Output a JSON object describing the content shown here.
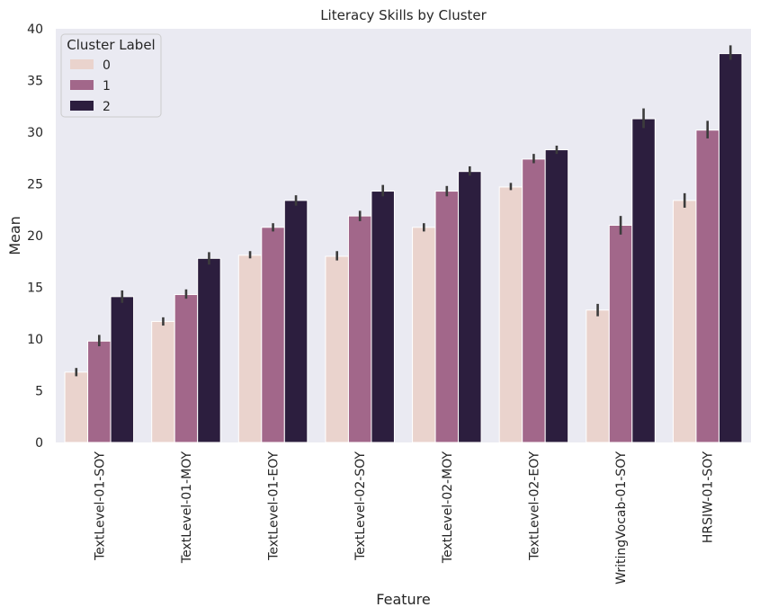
{
  "chart_data": {
    "type": "bar",
    "title": "Literacy Skills by Cluster",
    "xlabel": "Feature",
    "ylabel": "Mean",
    "ylim": [
      0,
      40
    ],
    "yticks": [
      0,
      5,
      10,
      15,
      20,
      25,
      30,
      35,
      40
    ],
    "grid": false,
    "legend": {
      "title": "Cluster Label",
      "placement": "top-left"
    },
    "categories": [
      "TextLevel-01-SOY",
      "TextLevel-01-MOY",
      "TextLevel-01-EOY",
      "TextLevel-02-SOY",
      "TextLevel-02-MOY",
      "TextLevel-02-EOY",
      "WritingVocab-01-SOY",
      "HRSIW-01-SOY"
    ],
    "series": [
      {
        "name": "0",
        "color": "#ead3cd",
        "values": [
          6.8,
          11.7,
          18.1,
          18.0,
          20.8,
          24.7,
          12.8,
          23.4
        ],
        "error": [
          [
            6.4,
            7.2
          ],
          [
            11.3,
            12.1
          ],
          [
            17.8,
            18.5
          ],
          [
            17.6,
            18.5
          ],
          [
            20.4,
            21.2
          ],
          [
            24.4,
            25.1
          ],
          [
            12.2,
            13.4
          ],
          [
            22.7,
            24.1
          ]
        ]
      },
      {
        "name": "1",
        "color": "#a2678a",
        "values": [
          9.8,
          14.3,
          20.8,
          21.9,
          24.3,
          27.4,
          21.0,
          30.2
        ],
        "error": [
          [
            9.3,
            10.4
          ],
          [
            13.9,
            14.8
          ],
          [
            20.4,
            21.2
          ],
          [
            21.4,
            22.4
          ],
          [
            23.8,
            24.8
          ],
          [
            27.0,
            27.9
          ],
          [
            20.1,
            21.9
          ],
          [
            29.4,
            31.1
          ]
        ]
      },
      {
        "name": "2",
        "color": "#2c1e3e",
        "values": [
          14.1,
          17.8,
          23.4,
          24.3,
          26.2,
          28.3,
          31.3,
          37.6
        ],
        "error": [
          [
            13.5,
            14.7
          ],
          [
            17.2,
            18.4
          ],
          [
            22.9,
            23.9
          ],
          [
            23.8,
            24.9
          ],
          [
            25.8,
            26.7
          ],
          [
            27.9,
            28.7
          ],
          [
            30.4,
            32.3
          ],
          [
            37.0,
            38.4
          ]
        ]
      }
    ]
  }
}
